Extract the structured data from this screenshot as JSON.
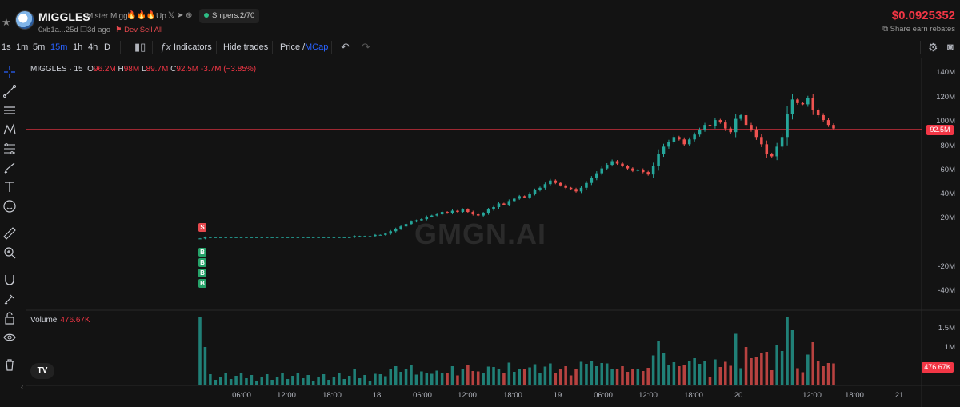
{
  "header": {
    "token_name": "MIGGLES",
    "token_full": "Mister Miggl",
    "flames": "🔥🔥🔥",
    "up": "Up",
    "social_x": "𝕏",
    "social_tg": "➤",
    "social_web": "⊕",
    "snipers": "Snipers:2/70",
    "address": "0xb1a...25d",
    "age": "3d ago",
    "dev_sell": "Dev Sell All",
    "price": "$0.0925352",
    "rebates": "Share earn rebates"
  },
  "toolbar": {
    "timeframes": [
      "1s",
      "1m",
      "5m",
      "15m",
      "1h",
      "4h",
      "D"
    ],
    "active_timeframe": "15m",
    "indicators": "Indicators",
    "hide_trades": "Hide trades",
    "price_label": "Price /",
    "mcap_label": "MCap"
  },
  "legend": {
    "symbol": "MIGGLES · 15",
    "o_label": "O",
    "o": "96.2M",
    "h_label": "H",
    "h": "98M",
    "l_label": "L",
    "l": "89.7M",
    "c_label": "C",
    "c": "92.5M",
    "change": "-3.7M (−3.85%)"
  },
  "volume": {
    "label": "Volume",
    "value": "476.67K",
    "tag": "476.67K"
  },
  "price_tag": "92.5M",
  "watermark": "GMGN.AI",
  "tv_logo": "TV",
  "yaxis": [
    "140M",
    "120M",
    "100M",
    "80M",
    "60M",
    "40M",
    "20M",
    "-20M",
    "-40M"
  ],
  "vol_axis": [
    "1.5M",
    "1M"
  ],
  "xaxis": [
    "06:00",
    "12:00",
    "18:00",
    "18",
    "06:00",
    "12:00",
    "18:00",
    "19",
    "06:00",
    "12:00",
    "18:00",
    "20",
    "12:00",
    "18:00",
    "21"
  ],
  "markers": {
    "sell": "S",
    "buy": "B"
  },
  "colors": {
    "up": "#26a69a",
    "down": "#ef5350",
    "accent": "#2962ff",
    "price": "#f23645"
  },
  "chart_data": {
    "type": "candlestick",
    "title": "MIGGLES · 15",
    "ylabel": "MCap",
    "ylim": [
      -50000000,
      145000000
    ],
    "candles_mcap_m": [
      2,
      3,
      3,
      3,
      3,
      3,
      3,
      3,
      3,
      3,
      3,
      3,
      3,
      3,
      3,
      3,
      3,
      3,
      3,
      3,
      3,
      3,
      3,
      3,
      3,
      3,
      3,
      3,
      3,
      3,
      4,
      4,
      4,
      4,
      5,
      5,
      6,
      8,
      10,
      12,
      14,
      16,
      17,
      18,
      20,
      21,
      22,
      24,
      23,
      25,
      24,
      26,
      24,
      22,
      21,
      23,
      26,
      28,
      31,
      30,
      33,
      35,
      37,
      36,
      39,
      42,
      44,
      47,
      50,
      48,
      46,
      44,
      43,
      41,
      44,
      48,
      52,
      56,
      60,
      63,
      66,
      64,
      62,
      60,
      58,
      59,
      57,
      55,
      62,
      72,
      78,
      82,
      86,
      84,
      80,
      84,
      88,
      92,
      96,
      95,
      100,
      98,
      93,
      90,
      101,
      104,
      96,
      92,
      86,
      80,
      72,
      70,
      78,
      86,
      105,
      117,
      114,
      113,
      118,
      108,
      104,
      100,
      96,
      93
    ],
    "current_mcap": "92.5M",
    "volume_max_label": "1.5M"
  }
}
